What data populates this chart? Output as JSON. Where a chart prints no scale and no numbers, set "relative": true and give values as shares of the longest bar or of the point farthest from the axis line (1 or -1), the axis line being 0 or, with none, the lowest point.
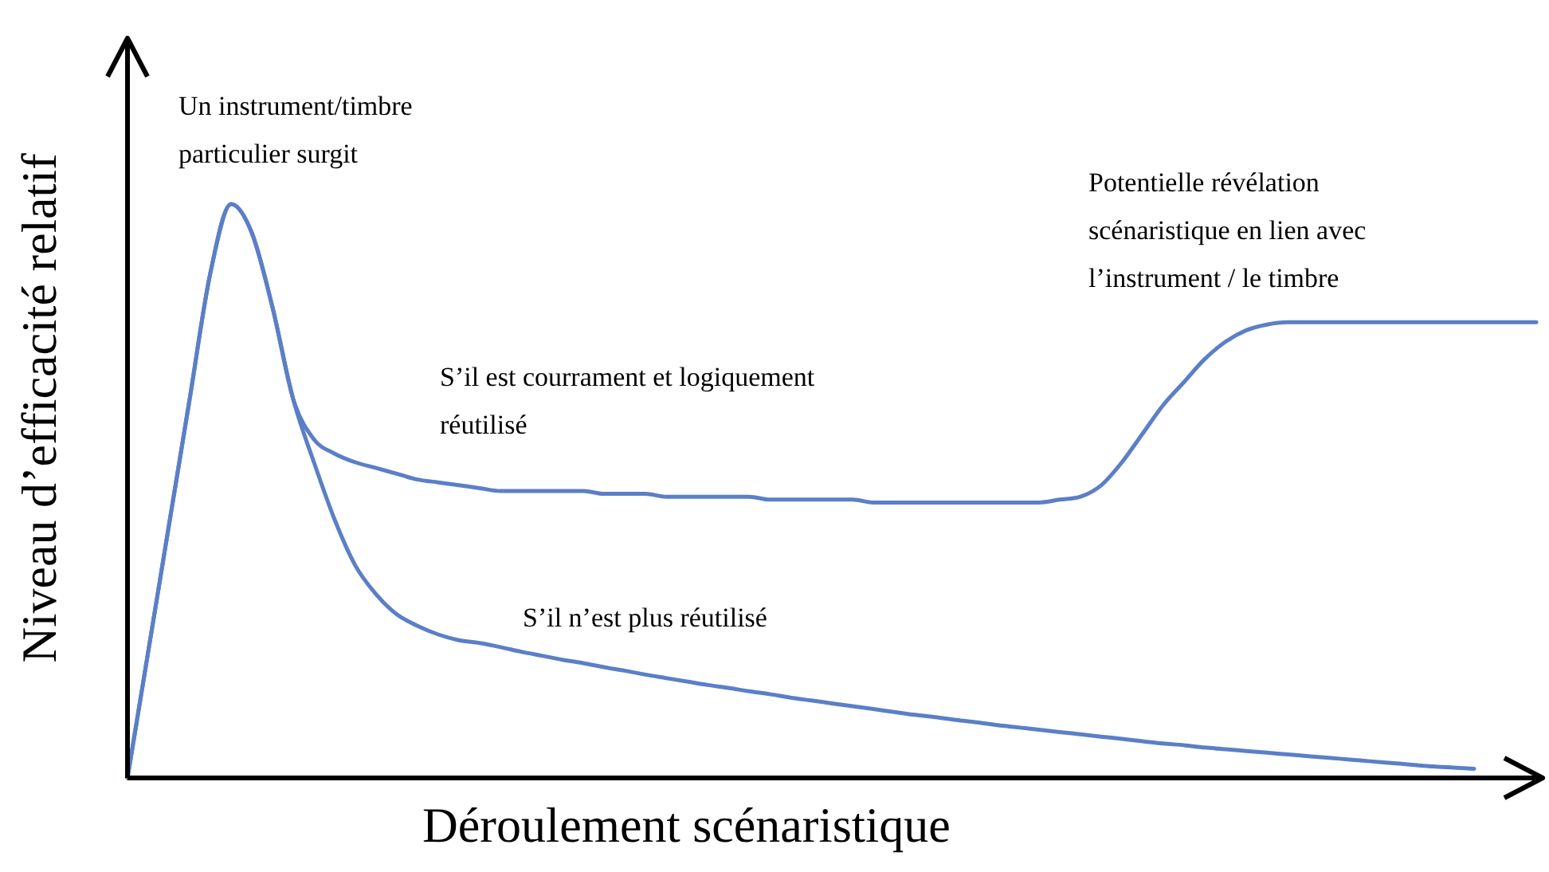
{
  "chart_data": {
    "type": "line",
    "relative": true,
    "xlabel": "Déroulement scénaristique",
    "ylabel": "Niveau d’efficacité relatif",
    "categories": [
      null,
      null,
      null,
      null,
      null,
      null,
      null,
      null,
      null,
      null,
      null,
      null,
      null,
      null,
      null,
      null,
      null,
      null,
      null,
      null,
      null,
      null,
      null,
      null,
      null,
      null,
      null,
      null,
      null,
      null,
      null,
      null,
      null,
      null,
      null,
      null,
      null,
      null,
      null,
      null,
      null,
      null,
      null,
      null,
      null,
      null,
      null,
      null,
      null,
      null,
      null,
      null,
      null,
      null,
      null,
      null,
      null,
      null,
      null,
      null,
      null,
      null,
      null,
      null,
      null,
      null,
      null,
      null,
      null
    ],
    "series": [
      {
        "color": "#5b7fc7",
        "values": [
          0,
          0.22,
          0.44,
          0.66,
          0.88,
          1,
          0.95,
          0.82,
          0.66,
          0.59,
          0.565,
          0.55,
          0.54,
          0.53,
          0.52,
          0.515,
          0.51,
          0.505,
          0.5,
          0.5,
          0.5,
          0.5,
          0.5,
          0.495,
          0.495,
          0.495,
          0.49,
          0.49,
          0.49,
          0.49,
          0.49,
          0.485,
          0.485,
          0.485,
          0.485,
          0.485,
          0.48,
          0.48,
          0.48,
          0.48,
          0.48,
          0.48,
          0.48,
          0.48,
          0.48,
          0.485,
          0.49,
          0.51,
          0.55,
          0.6,
          0.65,
          0.69,
          0.73,
          0.76,
          0.78,
          0.79,
          0.794,
          0.794,
          0.794,
          0.794,
          0.794,
          0.794,
          0.794,
          0.794,
          0.794,
          0.794,
          0.794,
          0.794,
          0.794
        ]
      },
      {
        "color": "#5b7fc7",
        "values": [
          0,
          0.22,
          0.44,
          0.66,
          0.88,
          1,
          0.95,
          0.82,
          0.66,
          0.55,
          0.45,
          0.37,
          0.32,
          0.285,
          0.265,
          0.25,
          0.24,
          0.235,
          0.228,
          0.22,
          0.213,
          0.206,
          0.2,
          0.193,
          0.187,
          0.18,
          0.174,
          0.168,
          0.162,
          0.157,
          0.151,
          0.146,
          0.14,
          0.135,
          0.13,
          0.125,
          0.12,
          0.115,
          0.11,
          0.106,
          0.101,
          0.097,
          0.092,
          0.088,
          0.084,
          0.08,
          0.076,
          0.072,
          0.068,
          0.064,
          0.06,
          0.057,
          0.053,
          0.05,
          0.047,
          0.044,
          0.041,
          0.038,
          0.035,
          0.032,
          0.029,
          0.026,
          0.023,
          0.02,
          0.018,
          0.016,
          null,
          null,
          null
        ]
      }
    ],
    "annotations": [
      "Un instrument/timbre\nparticulier surgit",
      "S’il est courrament et logiquement\nréutilisé",
      "S’il n’est plus réutilisé",
      "Potentielle révélation\nscénaristique en lien avec\nl’instrument / le timbre"
    ],
    "legend": false,
    "grid": false,
    "tick_labels": false,
    "marker": "none",
    "line_style": "solid"
  }
}
